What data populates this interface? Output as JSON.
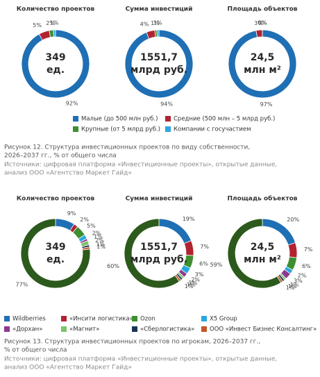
{
  "figures": [
    {
      "series": [
        {
          "name": "Малые (до 500 млн руб.)",
          "color": "#1f6fb5"
        },
        {
          "name": "Средние (500 млн – 5 млрд руб.)",
          "color": "#b22330"
        },
        {
          "name": "Крупные (от 5 млрд руб.)",
          "color": "#3d8f2f"
        },
        {
          "name": "Компании с госучастием",
          "color": "#2aa7dd"
        }
      ],
      "charts": [
        {
          "type": "pie",
          "title": "Количество проектов",
          "center": [
            "349",
            "ед."
          ],
          "values": [
            92,
            5,
            2,
            1
          ],
          "value_labels": [
            "92%",
            "5%",
            "2%",
            "1%"
          ]
        },
        {
          "type": "pie",
          "title": "Сумма инвестиций",
          "center": [
            "1551,7",
            "млрд руб."
          ],
          "values": [
            94,
            4,
            1,
            1
          ],
          "value_labels": [
            "94%",
            "4%",
            "1%",
            "1%"
          ]
        },
        {
          "type": "pie",
          "title": "Площадь объектов",
          "center": [
            "24,5",
            "млн м²"
          ],
          "values": [
            97,
            3,
            0,
            0
          ],
          "value_labels": [
            "97%",
            "3%",
            "0%",
            "0%"
          ]
        }
      ],
      "caption": [
        "Рисунок 12. Структура инвестиционных проектов по виду собственности,",
        "2026–2037 гг., % от общего числа"
      ],
      "source": [
        "Источники: цифровая платформа «Инвестиционные проекты», открытые данные,",
        "анализ ООО «Агентство Маркет Гайд»"
      ]
    },
    {
      "series": [
        {
          "name": "Wildberries",
          "color": "#1f6fb5"
        },
        {
          "name": "«Инсити логистика»",
          "color": "#b22330"
        },
        {
          "name": "Ozon",
          "color": "#3d8f2f"
        },
        {
          "name": "X5 Group",
          "color": "#2aa7dd"
        },
        {
          "name": "«Дорхан»",
          "color": "#8b3a8f"
        },
        {
          "name": "«Магнит»",
          "color": "#7dc36b"
        },
        {
          "name": "«Сберлогистика»",
          "color": "#1c3553"
        },
        {
          "name": "ООО «Инвест Бизнес Консалтинг»",
          "color": "#c0562b"
        },
        {
          "name": null,
          "color": "#2c5a1c"
        }
      ],
      "charts": [
        {
          "type": "pie",
          "title": "Количество проектов",
          "center": [
            "349",
            "ед."
          ],
          "values": [
            9,
            2,
            5,
            2,
            1,
            2,
            1,
            1,
            77
          ],
          "value_labels": [
            "9%",
            "2%",
            "5%",
            "2%",
            "1%",
            "2%",
            "1%",
            "1%",
            "77%"
          ]
        },
        {
          "type": "pie",
          "title": "Сумма инвестиций",
          "center": [
            "1551,7",
            "млрд руб."
          ],
          "values": [
            19,
            7,
            6,
            3,
            2,
            1,
            1,
            1,
            60
          ],
          "value_labels": [
            "19%",
            "7%",
            "6%",
            "3%",
            "2%",
            "1%",
            "1%",
            "1%",
            "60%"
          ]
        },
        {
          "type": "pie",
          "title": "Площадь объектов",
          "center": [
            "24,5",
            "млн м²"
          ],
          "values": [
            20,
            7,
            6,
            2,
            3,
            1,
            1,
            1,
            59
          ],
          "value_labels": [
            "20%",
            "7%",
            "6%",
            "2%",
            "3%",
            "1%",
            "1%",
            "1%",
            "59%"
          ]
        }
      ],
      "caption": [
        "Рисунок 13. Структура инвестиционных проектов по игрокам, 2026–2037 гг.,",
        "% от общего числа"
      ],
      "source": [
        "Источники: цифровая платформа «Инвестиционные проекты», открытые данные,",
        "анализ ООО «Агентство Маркет Гайд»"
      ]
    }
  ]
}
